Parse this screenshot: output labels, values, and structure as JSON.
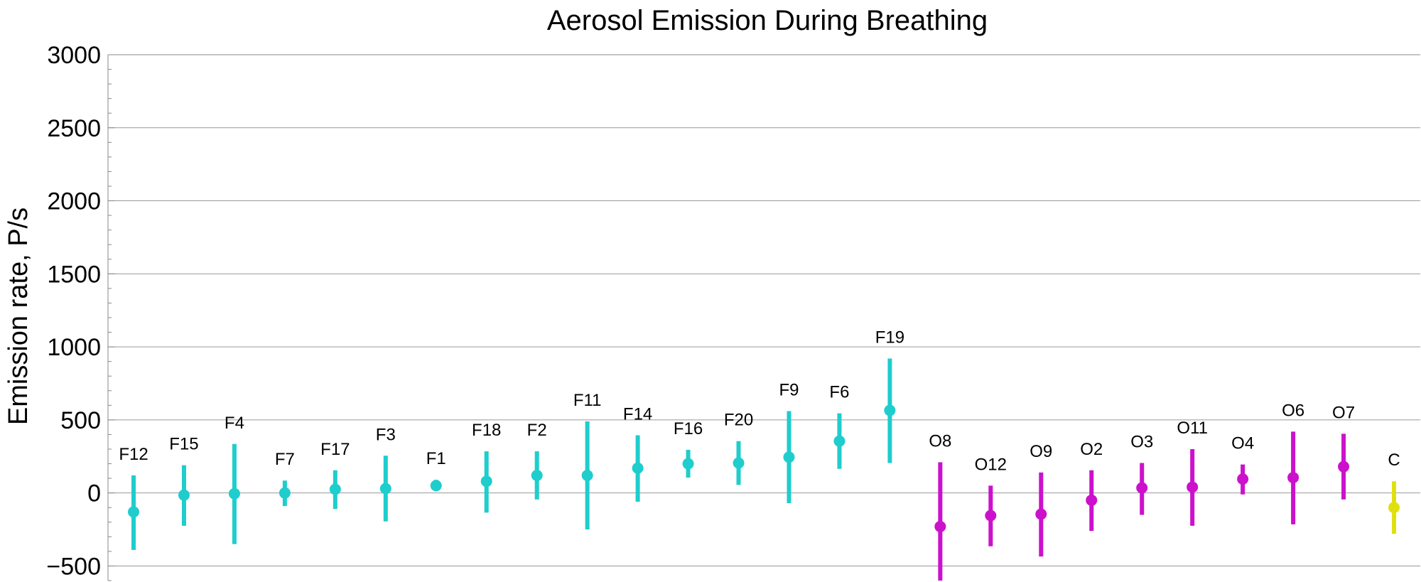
{
  "chart_data": {
    "type": "scatter",
    "title": "Aerosol Emission During Breathing",
    "ylabel": "Emission rate,  P/s",
    "xlabel": "",
    "ylim": [
      -600,
      3000
    ],
    "yticks": [
      -500,
      0,
      500,
      1000,
      1500,
      2000,
      2500,
      3000
    ],
    "grid": true,
    "colors": {
      "F": "#1fcdcd",
      "O": "#cc11cc",
      "C": "#e0e010"
    },
    "points": [
      {
        "label": "F12",
        "group": "F",
        "value": -130,
        "low": -390,
        "high": 120
      },
      {
        "label": "F15",
        "group": "F",
        "value": -15,
        "low": -225,
        "high": 190
      },
      {
        "label": "F4",
        "group": "F",
        "value": -5,
        "low": -350,
        "high": 335
      },
      {
        "label": "F7",
        "group": "F",
        "value": 0,
        "low": -90,
        "high": 85
      },
      {
        "label": "F17",
        "group": "F",
        "value": 25,
        "low": -110,
        "high": 155
      },
      {
        "label": "F3",
        "group": "F",
        "value": 30,
        "low": -195,
        "high": 255
      },
      {
        "label": "F1",
        "group": "F",
        "value": 50,
        "low": 15,
        "high": 90
      },
      {
        "label": "F18",
        "group": "F",
        "value": 80,
        "low": -135,
        "high": 285
      },
      {
        "label": "F2",
        "group": "F",
        "value": 120,
        "low": -45,
        "high": 285
      },
      {
        "label": "F11",
        "group": "F",
        "value": 120,
        "low": -250,
        "high": 490
      },
      {
        "label": "F14",
        "group": "F",
        "value": 170,
        "low": -60,
        "high": 395
      },
      {
        "label": "F16",
        "group": "F",
        "value": 200,
        "low": 105,
        "high": 295
      },
      {
        "label": "F20",
        "group": "F",
        "value": 205,
        "low": 55,
        "high": 355
      },
      {
        "label": "F9",
        "group": "F",
        "value": 245,
        "low": -70,
        "high": 560
      },
      {
        "label": "F6",
        "group": "F",
        "value": 355,
        "low": 165,
        "high": 545
      },
      {
        "label": "F19",
        "group": "F",
        "value": 565,
        "low": 205,
        "high": 920
      },
      {
        "label": "O8",
        "group": "O",
        "value": -230,
        "low": -600,
        "high": 210
      },
      {
        "label": "O12",
        "group": "O",
        "value": -155,
        "low": -365,
        "high": 50
      },
      {
        "label": "O9",
        "group": "O",
        "value": -145,
        "low": -435,
        "high": 140
      },
      {
        "label": "O2",
        "group": "O",
        "value": -50,
        "low": -260,
        "high": 155
      },
      {
        "label": "O3",
        "group": "O",
        "value": 35,
        "low": -150,
        "high": 205
      },
      {
        "label": "O11",
        "group": "O",
        "value": 40,
        "low": -225,
        "high": 300
      },
      {
        "label": "O4",
        "group": "O",
        "value": 95,
        "low": -10,
        "high": 195
      },
      {
        "label": "O6",
        "group": "O",
        "value": 105,
        "low": -215,
        "high": 420
      },
      {
        "label": "O7",
        "group": "O",
        "value": 180,
        "low": -45,
        "high": 405
      },
      {
        "label": "C",
        "group": "C",
        "value": -100,
        "low": -280,
        "high": 80
      }
    ]
  }
}
